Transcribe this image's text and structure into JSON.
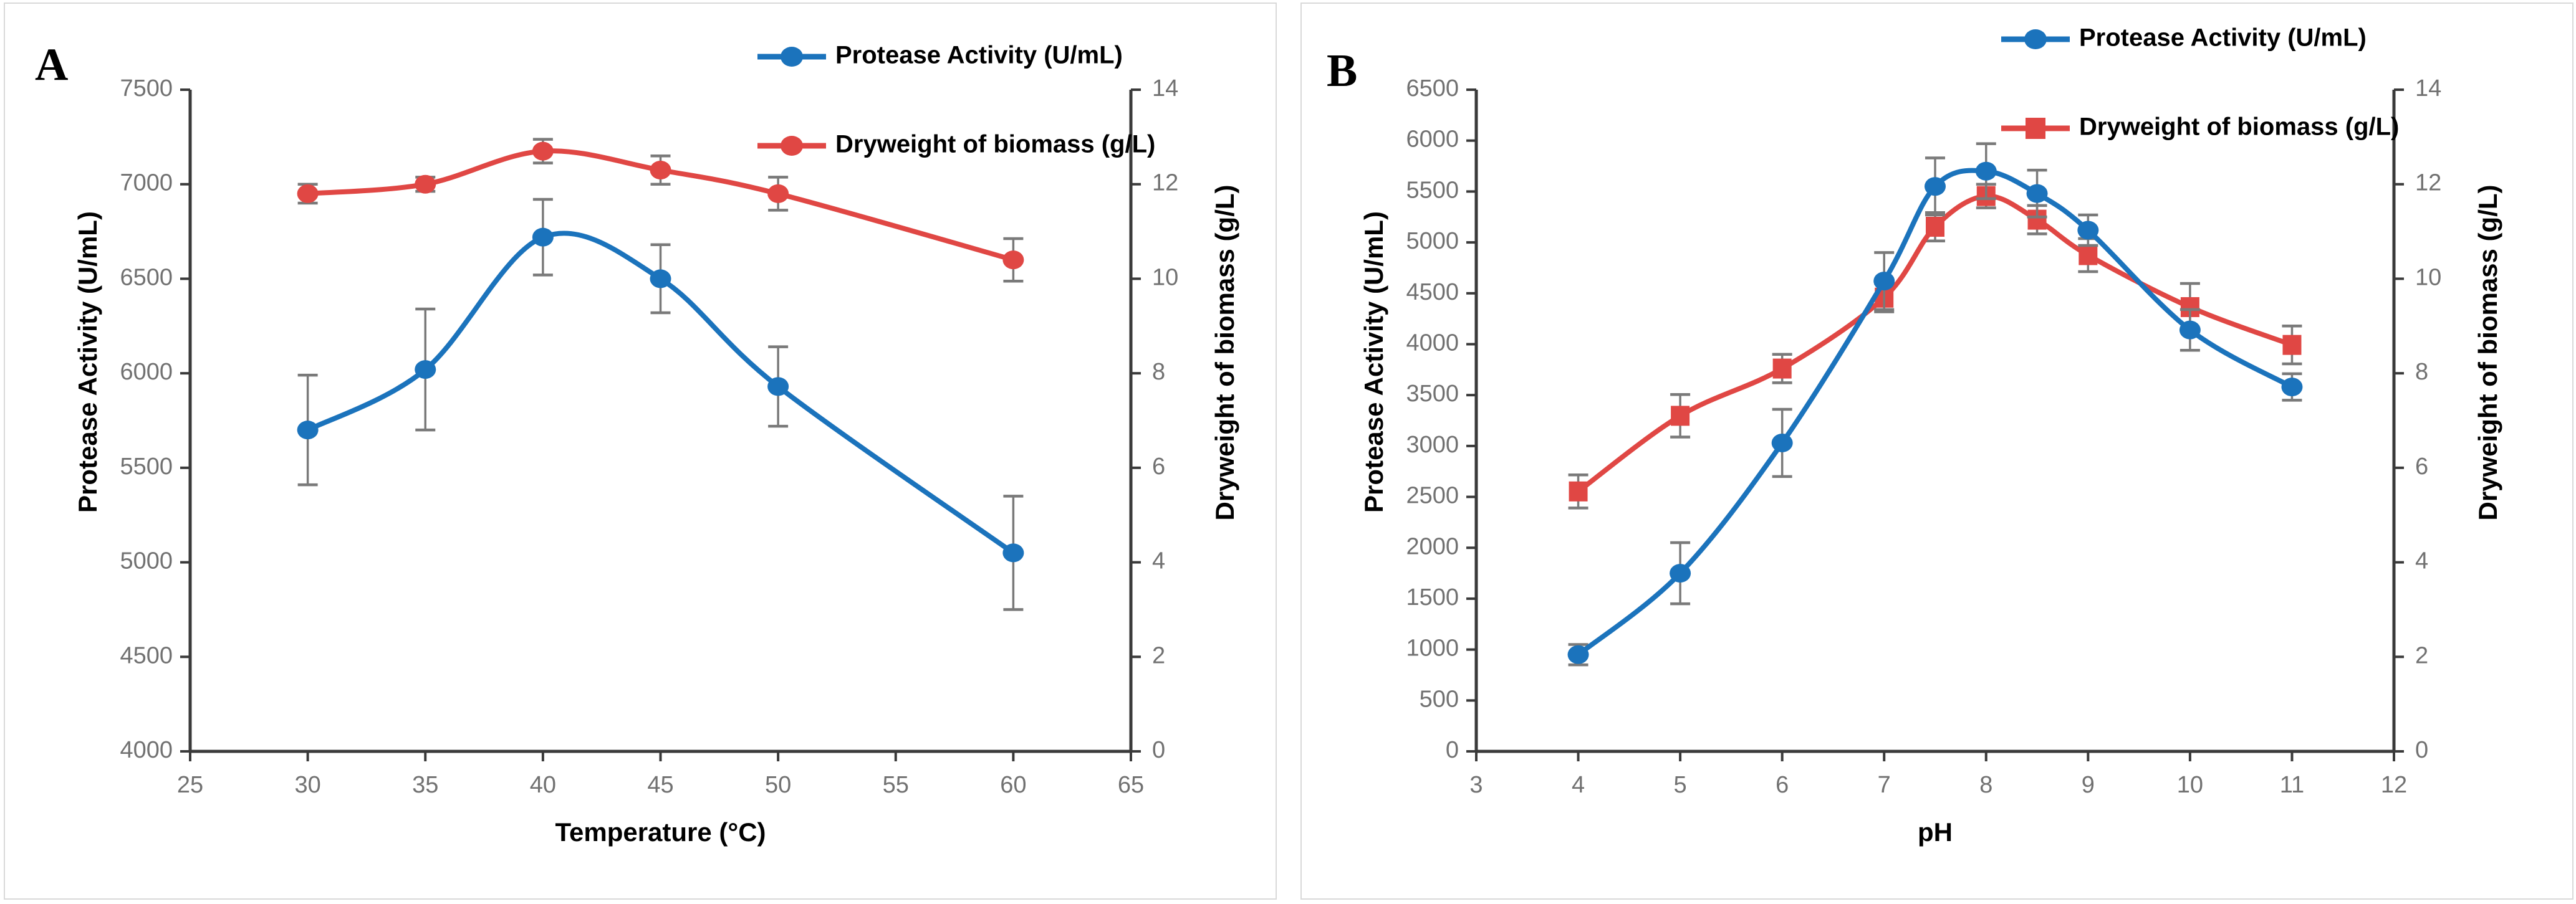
{
  "figure": {
    "background": "#ffffff",
    "panel_border_color": "#d9d9d9"
  },
  "colors": {
    "protease": "#1B73BC",
    "biomass": "#E04744",
    "error_bar": "#7a7a7a",
    "axis_line": "#3a3a3a",
    "tick_label": "#717171",
    "title_text": "#000000"
  },
  "chart_data": [
    {
      "type": "line",
      "panel_label": "A",
      "xlabel": "Temperature (°C)",
      "ylabel_left": "Protease Activity (U/mL)",
      "ylabel_right": "Dryweight of biomass (g/L)",
      "xlim": [
        25,
        65
      ],
      "x_tick_step": 5,
      "x_ticks": [
        25,
        30,
        35,
        40,
        45,
        50,
        55,
        60,
        65
      ],
      "ylim_left": [
        4000,
        7500
      ],
      "y_ticks_left": [
        4000,
        4500,
        5000,
        5500,
        6000,
        6500,
        7000,
        7500
      ],
      "ylim_right": [
        0,
        14
      ],
      "y_ticks_right": [
        0,
        2,
        4,
        6,
        8,
        10,
        12,
        14
      ],
      "grid": false,
      "legend_position": "top-right",
      "legend": [
        "Protease Activity (U/mL)",
        "Dryweight of biomass (g/L)"
      ],
      "series": [
        {
          "name": "Dryweight of biomass (g/L)",
          "axis": "right",
          "marker": "circle",
          "color_key": "biomass",
          "x": [
            30,
            35,
            40,
            45,
            50,
            60
          ],
          "y": [
            11.8,
            12.0,
            12.7,
            12.3,
            11.8,
            10.4
          ],
          "err": [
            0.2,
            0.15,
            0.25,
            0.3,
            0.35,
            0.45
          ]
        },
        {
          "name": "Protease Activity (U/mL)",
          "axis": "left",
          "marker": "circle",
          "color_key": "protease",
          "x": [
            30,
            35,
            40,
            45,
            50,
            60
          ],
          "y": [
            5700,
            6020,
            6720,
            6500,
            5930,
            5050
          ],
          "err": [
            290,
            320,
            200,
            180,
            210,
            300
          ]
        }
      ]
    },
    {
      "type": "line",
      "panel_label": "B",
      "xlabel": "pH",
      "ylabel_left": "Protease Activity (U/mL)",
      "ylabel_right": "Dryweight of biomass (g/L)",
      "xlim": [
        3,
        12
      ],
      "x_tick_step": 1,
      "x_ticks": [
        3,
        4,
        5,
        6,
        7,
        8,
        9,
        10,
        11,
        12
      ],
      "ylim_left": [
        0,
        6500
      ],
      "y_ticks_left": [
        0,
        500,
        1000,
        1500,
        2000,
        2500,
        3000,
        3500,
        4000,
        4500,
        5000,
        5500,
        6000,
        6500
      ],
      "ylim_right": [
        0,
        14
      ],
      "y_ticks_right": [
        0,
        2,
        4,
        6,
        8,
        10,
        12,
        14
      ],
      "grid": false,
      "legend_position": "top-right",
      "legend": [
        "Protease Activity (U/mL)",
        "Dryweight of biomass (g/L)"
      ],
      "series": [
        {
          "name": "Dryweight of biomass (g/L)",
          "axis": "right",
          "marker": "square",
          "color_key": "biomass",
          "x": [
            4,
            5,
            6,
            7,
            7.5,
            8,
            8.5,
            9,
            10,
            11
          ],
          "y": [
            5.5,
            7.1,
            8.1,
            9.6,
            11.1,
            11.75,
            11.25,
            10.5,
            9.4,
            8.6
          ],
          "err": [
            0.35,
            0.45,
            0.3,
            0.3,
            0.3,
            0.25,
            0.3,
            0.35,
            0.5,
            0.4
          ]
        },
        {
          "name": "Protease Activity (U/mL)",
          "axis": "left",
          "marker": "circle",
          "color_key": "protease",
          "x": [
            4,
            5,
            6,
            7,
            7.5,
            8,
            8.5,
            9,
            10,
            11
          ],
          "y": [
            950,
            1750,
            3030,
            4620,
            5550,
            5700,
            5480,
            5120,
            4140,
            3580
          ],
          "err": [
            100,
            300,
            330,
            280,
            280,
            270,
            230,
            150,
            200,
            130
          ]
        }
      ]
    }
  ]
}
